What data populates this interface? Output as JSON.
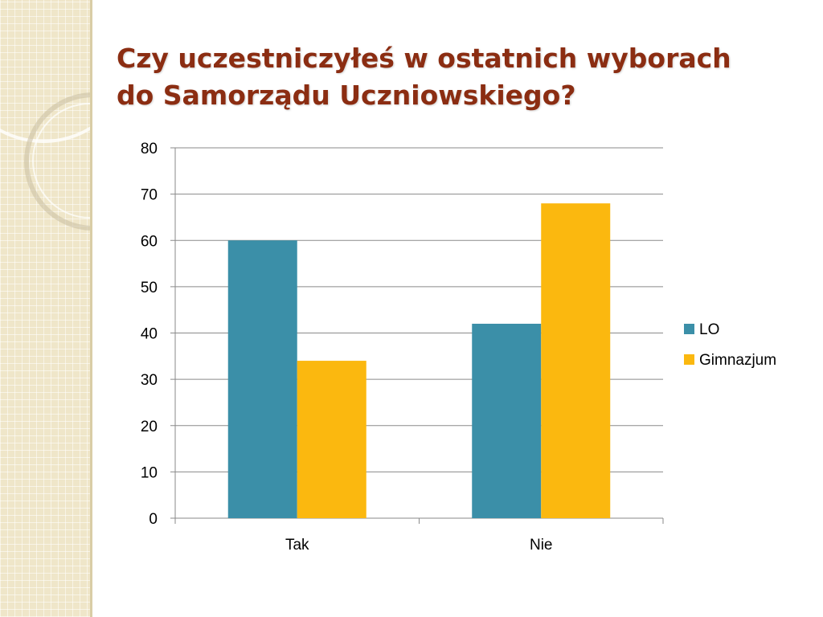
{
  "slide": {
    "title_lines": [
      "Czy uczestniczyłeś w ostatnich wyborach",
      "do Samorządu Uczniowskiego?"
    ]
  },
  "chart_data": {
    "type": "bar",
    "categories": [
      "Tak",
      "Nie"
    ],
    "series": [
      {
        "name": "LO",
        "values": [
          60,
          42
        ],
        "color": "#3b8fa8"
      },
      {
        "name": "Gimnazjum",
        "values": [
          34,
          68
        ],
        "color": "#fbb80f"
      }
    ],
    "ylim": [
      0,
      80
    ],
    "yticks": [
      0,
      10,
      20,
      30,
      40,
      50,
      60,
      70,
      80
    ],
    "grid": true,
    "legend": "right",
    "title": "",
    "xlabel": "",
    "ylabel": ""
  }
}
